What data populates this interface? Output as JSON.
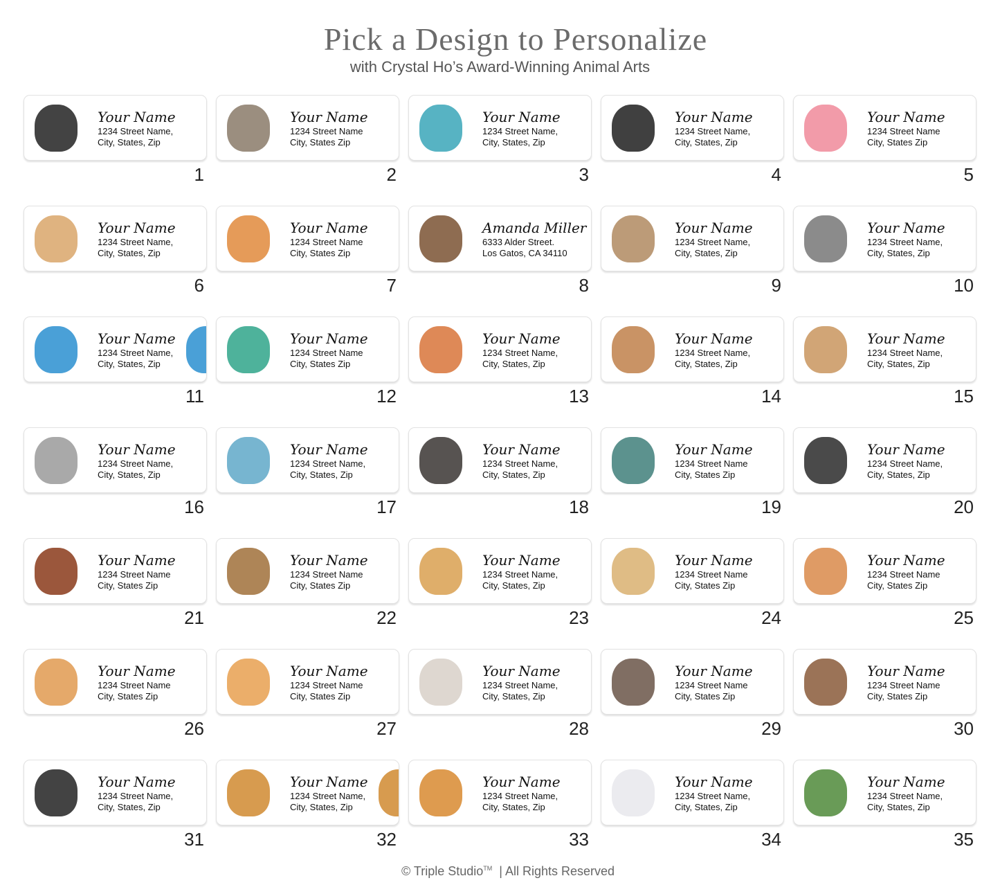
{
  "header": {
    "title": "Pick a Design to Personalize",
    "subtitle": "with Crystal Ho’s Award-Winning Animal Arts"
  },
  "footer": {
    "copyright": "© Triple Studio",
    "tm": "TM",
    "rights": "| All Rights Reserved"
  },
  "labels": [
    {
      "number": "1",
      "animal": "orca-pair",
      "color": "#222222",
      "name": "Your Name",
      "line1": "1234 Street Name,",
      "line2": "City, States, Zip"
    },
    {
      "number": "2",
      "animal": "hedgehogs",
      "color": "#8a7a68",
      "name": "Your Name",
      "line1": "1234 Street Name",
      "line2": "City, States Zip"
    },
    {
      "number": "3",
      "animal": "bird-heart",
      "color": "#3aa6b9",
      "name": "Your Name",
      "line1": "1234 Street Name,",
      "line2": "City, States, Zip"
    },
    {
      "number": "4",
      "animal": "penguins",
      "color": "#1e1e1e",
      "name": "Your Name",
      "line1": "1234 Street Name,",
      "line2": "City, States, Zip"
    },
    {
      "number": "5",
      "animal": "flamingos",
      "color": "#f08a9a",
      "name": "Your Name",
      "line1": "1234 Street Name",
      "line2": "City, States Zip"
    },
    {
      "number": "6",
      "animal": "rabbit",
      "color": "#d9a66a",
      "name": "Your Name",
      "line1": "1234 Street Name,",
      "line2": "City, States, Zip"
    },
    {
      "number": "7",
      "animal": "fox",
      "color": "#e08a3c",
      "name": "Your Name",
      "line1": "1234 Street Name",
      "line2": "City, States Zip"
    },
    {
      "number": "8",
      "animal": "bear",
      "color": "#7a5232",
      "name": "Amanda Miller",
      "line1": "6333 Alder Street.",
      "line2": "Los Gatos, CA 34110"
    },
    {
      "number": "9",
      "animal": "chipmunk",
      "color": "#b08a60",
      "name": "Your Name",
      "line1": "1234 Street Name,",
      "line2": "City, States, Zip"
    },
    {
      "number": "10",
      "animal": "raccoon",
      "color": "#777777",
      "name": "Your Name",
      "line1": "1234 Street Name,",
      "line2": "City, States, Zip"
    },
    {
      "number": "11",
      "animal": "macaws",
      "color": "#2a8fd0",
      "name": "Your Name",
      "line1": "1234 Street Name,",
      "line2": "City, States, Zip"
    },
    {
      "number": "12",
      "animal": "hummingbird",
      "color": "#2fa58a",
      "name": "Your Name",
      "line1": "1234 Street Name",
      "line2": "City, States Zip"
    },
    {
      "number": "13",
      "animal": "robin",
      "color": "#d8743a",
      "name": "Your Name",
      "line1": "1234 Street Name,",
      "line2": "City, States, Zip"
    },
    {
      "number": "14",
      "animal": "fawn",
      "color": "#c0804a",
      "name": "Your Name",
      "line1": "1234 Street Name,",
      "line2": "City, States, Zip"
    },
    {
      "number": "15",
      "animal": "bunny",
      "color": "#c9955e",
      "name": "Your Name",
      "line1": "1234 Street Name,",
      "line2": "City, States, Zip"
    },
    {
      "number": "16",
      "animal": "koalas",
      "color": "#9a9a9a",
      "name": "Your Name",
      "line1": "1234 Street Name,",
      "line2": "City, States, Zip"
    },
    {
      "number": "17",
      "animal": "dolphins",
      "color": "#5fa8c8",
      "name": "Your Name",
      "line1": "1234 Street Name,",
      "line2": "City, States, Zip"
    },
    {
      "number": "18",
      "animal": "otters",
      "color": "#3a3532",
      "name": "Your Name",
      "line1": "1234 Street Name,",
      "line2": "City, States, Zip"
    },
    {
      "number": "19",
      "animal": "sea-turtle",
      "color": "#3f7f7a",
      "name": "Your Name",
      "line1": "1234 Street Name",
      "line2": "City, States Zip"
    },
    {
      "number": "20",
      "animal": "emperor-penguins",
      "color": "#2a2a2a",
      "name": "Your Name",
      "line1": "1234 Street Name,",
      "line2": "City, States, Zip"
    },
    {
      "number": "21",
      "animal": "dachshund",
      "color": "#8a3a1a",
      "name": "Your Name",
      "line1": "1234 Street Name",
      "line2": "City, States Zip"
    },
    {
      "number": "22",
      "animal": "beagle",
      "color": "#a0703a",
      "name": "Your Name",
      "line1": "1234 Street Name",
      "line2": "City, States Zip"
    },
    {
      "number": "23",
      "animal": "golden-retriever",
      "color": "#d9a050",
      "name": "Your Name",
      "line1": "1234 Street Name,",
      "line2": "City, States, Zip"
    },
    {
      "number": "24",
      "animal": "pug",
      "color": "#d9b070",
      "name": "Your Name",
      "line1": "1234 Street Name",
      "line2": "City, States Zip"
    },
    {
      "number": "25",
      "animal": "corgi",
      "color": "#d98a4a",
      "name": "Your Name",
      "line1": "1234 Street Name",
      "line2": "City, States Zip"
    },
    {
      "number": "26",
      "animal": "cats",
      "color": "#e09a50",
      "name": "Your Name",
      "line1": "1234 Street Name",
      "line2": "City, States Zip"
    },
    {
      "number": "27",
      "animal": "orange-cat",
      "color": "#e8a050",
      "name": "Your Name",
      "line1": "1234 Street Name",
      "line2": "City, States Zip"
    },
    {
      "number": "28",
      "animal": "white-cat",
      "color": "#d8d0c8",
      "name": "Your Name",
      "line1": "1234 Street Name,",
      "line2": "City, States, Zip"
    },
    {
      "number": "29",
      "animal": "siamese-cat",
      "color": "#6a5548",
      "name": "Your Name",
      "line1": "1234 Street Name",
      "line2": "City, States Zip"
    },
    {
      "number": "30",
      "animal": "deer",
      "color": "#8a5a3a",
      "name": "Your Name",
      "line1": "1234 Street Name",
      "line2": "City, States Zip"
    },
    {
      "number": "31",
      "animal": "panda",
      "color": "#222222",
      "name": "Your Name",
      "line1": "1234 Street Name,",
      "line2": "City, States, Zip"
    },
    {
      "number": "32",
      "animal": "giraffes",
      "color": "#d08a30",
      "name": "Your Name",
      "line1": "1234 Street Name,",
      "line2": "City, States, Zip"
    },
    {
      "number": "33",
      "animal": "tiger",
      "color": "#d88a30",
      "name": "Your Name",
      "line1": "1234 Street Name,",
      "line2": "City, States, Zip"
    },
    {
      "number": "34",
      "animal": "polar-bear",
      "color": "#e8e8ec",
      "name": "Your Name",
      "line1": "1234 Street Name,",
      "line2": "City, States, Zip"
    },
    {
      "number": "35",
      "animal": "crocodile",
      "color": "#4f8a3a",
      "name": "Your Name",
      "line1": "1234 Street Name,",
      "line2": "City, States, Zip"
    }
  ]
}
